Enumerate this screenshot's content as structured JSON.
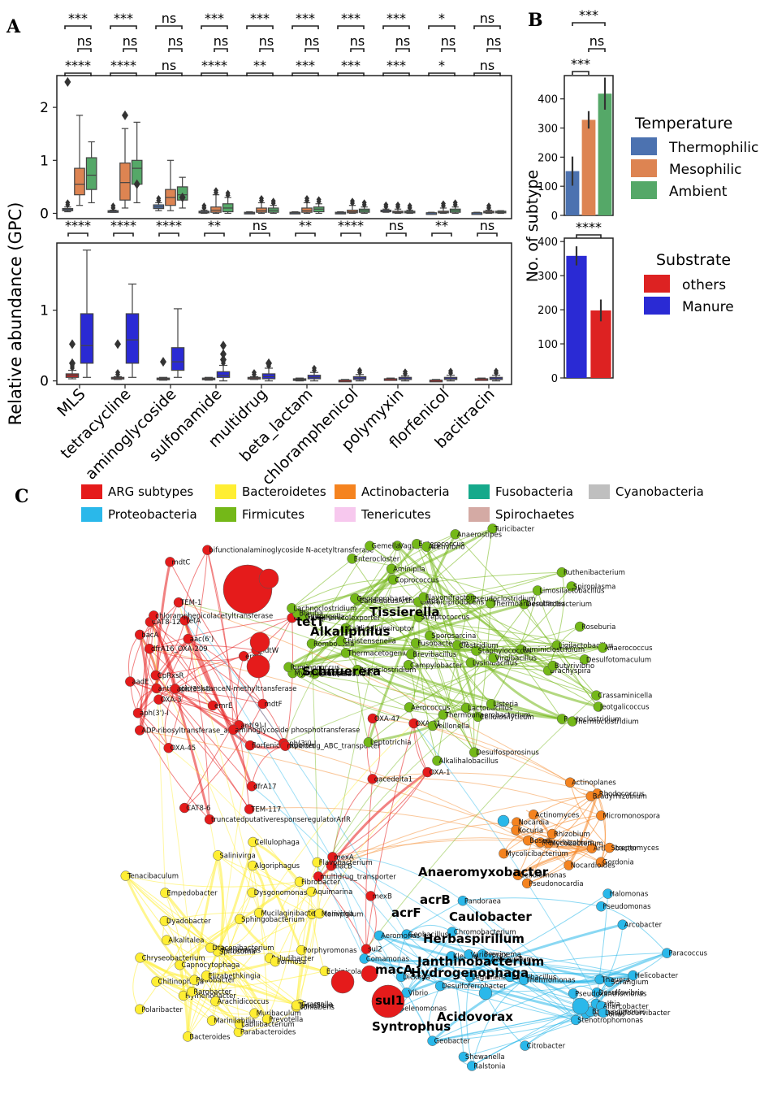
{
  "panel_labels": {
    "a": "A",
    "b": "B",
    "c": "C"
  },
  "chart_data": [
    {
      "type": "box",
      "panel": "A-top",
      "ylabel": "Relative abundance (GPC)",
      "ylim": [
        -0.1,
        2.6
      ],
      "yticks": [
        "0",
        "1",
        "2"
      ],
      "categories": [
        "MLS",
        "tetracycline",
        "aminoglycoside",
        "sulfonamide",
        "multidrug",
        "beta_lactam",
        "chloramphenicol",
        "polymyxin",
        "florfenicol",
        "bacitracin"
      ],
      "series": [
        {
          "name": "Thermophilic",
          "color": "#4c72b0",
          "boxes": [
            [
              0.03,
              0.05,
              0.07,
              0.09,
              0.12
            ],
            [
              0.02,
              0.03,
              0.04,
              0.05,
              0.06
            ],
            [
              0.05,
              0.09,
              0.12,
              0.16,
              0.2
            ],
            [
              0.0,
              0.01,
              0.02,
              0.04,
              0.06
            ],
            [
              0.0,
              0.01,
              0.01,
              0.02,
              0.03
            ],
            [
              0.0,
              0.0,
              0.01,
              0.02,
              0.03
            ],
            [
              0.0,
              0.0,
              0.01,
              0.02,
              0.03
            ],
            [
              0.02,
              0.04,
              0.05,
              0.06,
              0.08
            ],
            [
              0.0,
              0.0,
              0.01,
              0.01,
              0.02
            ],
            [
              0.0,
              0.0,
              0.01,
              0.01,
              0.02
            ]
          ]
        },
        {
          "name": "Mesophilic",
          "color": "#dd8452",
          "boxes": [
            [
              0.15,
              0.35,
              0.55,
              0.85,
              1.85
            ],
            [
              0.1,
              0.25,
              0.58,
              0.95,
              1.6
            ],
            [
              0.05,
              0.15,
              0.3,
              0.45,
              1.0
            ],
            [
              0.0,
              0.02,
              0.06,
              0.12,
              0.35
            ],
            [
              0.0,
              0.02,
              0.05,
              0.1,
              0.2
            ],
            [
              0.0,
              0.02,
              0.05,
              0.1,
              0.2
            ],
            [
              0.0,
              0.01,
              0.03,
              0.06,
              0.15
            ],
            [
              0.0,
              0.01,
              0.02,
              0.04,
              0.08
            ],
            [
              0.0,
              0.01,
              0.02,
              0.04,
              0.1
            ],
            [
              0.0,
              0.01,
              0.02,
              0.04,
              0.06
            ]
          ]
        },
        {
          "name": "Ambient",
          "color": "#55a868",
          "boxes": [
            [
              0.2,
              0.45,
              0.72,
              1.05,
              1.35
            ],
            [
              0.2,
              0.55,
              0.85,
              1.0,
              1.72
            ],
            [
              0.1,
              0.25,
              0.35,
              0.5,
              0.68
            ],
            [
              0.0,
              0.03,
              0.1,
              0.18,
              0.3
            ],
            [
              0.0,
              0.02,
              0.06,
              0.1,
              0.15
            ],
            [
              0.0,
              0.03,
              0.08,
              0.12,
              0.18
            ],
            [
              0.0,
              0.02,
              0.05,
              0.08,
              0.12
            ],
            [
              0.0,
              0.01,
              0.02,
              0.04,
              0.06
            ],
            [
              0.0,
              0.02,
              0.05,
              0.08,
              0.12
            ],
            [
              0.0,
              0.01,
              0.02,
              0.04,
              0.05
            ]
          ]
        }
      ],
      "outliers": [
        [
          0.04,
          2.48
        ],
        [
          1.13,
          1.85
        ],
        [
          1.83,
          0.55
        ],
        [
          2.83,
          0.3
        ]
      ],
      "significance": [
        [
          "****",
          "ns",
          "***"
        ],
        [
          "****",
          "ns",
          "***"
        ],
        [
          "ns",
          "ns",
          "ns"
        ],
        [
          "****",
          "ns",
          "***"
        ],
        [
          "**",
          "ns",
          "***"
        ],
        [
          "***",
          "ns",
          "***"
        ],
        [
          "***",
          "ns",
          "***"
        ],
        [
          "***",
          "ns",
          "***"
        ],
        [
          "*",
          "ns",
          "*"
        ],
        [
          "ns",
          "ns",
          "ns"
        ]
      ]
    },
    {
      "type": "box",
      "panel": "A-bottom",
      "ylim": [
        -0.05,
        1.95
      ],
      "yticks": [
        "0",
        "1"
      ],
      "categories": [
        "MLS",
        "tetracycline",
        "aminoglycoside",
        "sulfonamide",
        "multidrug",
        "beta_lactam",
        "chloramphenicol",
        "polymyxin",
        "florfenicol",
        "bacitracin"
      ],
      "series": [
        {
          "name": "others",
          "color": "#cc2222",
          "boxes": [
            [
              0.03,
              0.05,
              0.08,
              0.1,
              0.15
            ],
            [
              0.02,
              0.03,
              0.04,
              0.05,
              0.06
            ],
            [
              0.01,
              0.02,
              0.03,
              0.04,
              0.05
            ],
            [
              0.01,
              0.02,
              0.03,
              0.04,
              0.05
            ],
            [
              0.02,
              0.03,
              0.04,
              0.05,
              0.06
            ],
            [
              0.0,
              0.01,
              0.02,
              0.03,
              0.04
            ],
            [
              0.0,
              0.0,
              0.01,
              0.01,
              0.02
            ],
            [
              0.01,
              0.02,
              0.03,
              0.03,
              0.04
            ],
            [
              0.0,
              0.0,
              0.01,
              0.01,
              0.02
            ],
            [
              0.01,
              0.02,
              0.03,
              0.03,
              0.04
            ]
          ]
        },
        {
          "name": "Manure",
          "color": "#2a2ad4",
          "boxes": [
            [
              0.05,
              0.25,
              0.5,
              0.95,
              1.85
            ],
            [
              0.05,
              0.25,
              0.58,
              0.95,
              1.37
            ],
            [
              0.05,
              0.15,
              0.27,
              0.47,
              1.02
            ],
            [
              0.0,
              0.05,
              0.08,
              0.13,
              0.22
            ],
            [
              0.0,
              0.03,
              0.06,
              0.1,
              0.18
            ],
            [
              0.0,
              0.03,
              0.05,
              0.08,
              0.12
            ],
            [
              0.0,
              0.02,
              0.04,
              0.06,
              0.09
            ],
            [
              0.0,
              0.02,
              0.03,
              0.05,
              0.07
            ],
            [
              0.0,
              0.02,
              0.03,
              0.05,
              0.08
            ],
            [
              0.0,
              0.02,
              0.03,
              0.05,
              0.08
            ]
          ]
        }
      ],
      "significance": [
        "****",
        "****",
        "****",
        "**",
        "ns",
        "**",
        "****",
        "ns",
        "**",
        "ns"
      ]
    },
    {
      "type": "bar",
      "panel": "B-top",
      "ylabel": "No. of subtype",
      "ylim": [
        0,
        480
      ],
      "yticks": [
        "0",
        "100",
        "200",
        "300",
        "400"
      ],
      "categories": [
        "Thermophilic",
        "Mesophilic",
        "Ambient"
      ],
      "values": [
        152,
        328,
        418
      ],
      "errors": [
        50,
        30,
        55
      ],
      "colors": [
        "#4c72b0",
        "#dd8452",
        "#55a868"
      ],
      "significance": [
        "***",
        "ns",
        "***"
      ]
    },
    {
      "type": "bar",
      "panel": "B-bottom",
      "ylim": [
        0,
        410
      ],
      "yticks": [
        "0",
        "100",
        "200",
        "300",
        "400"
      ],
      "categories": [
        "Manure",
        "others"
      ],
      "values": [
        358,
        198
      ],
      "errors": [
        28,
        32
      ],
      "colors": [
        "#2a2ad4",
        "#dd2222"
      ],
      "significance": "****"
    }
  ],
  "legend_temperature": {
    "title": "Temperature",
    "items": [
      {
        "label": "Thermophilic",
        "color": "#4c72b0"
      },
      {
        "label": "Mesophilic",
        "color": "#dd8452"
      },
      {
        "label": "Ambient",
        "color": "#55a868"
      }
    ]
  },
  "legend_substrate": {
    "title": "Substrate",
    "items": [
      {
        "label": "others",
        "color": "#dd2222"
      },
      {
        "label": "Manure",
        "color": "#2a2ad4"
      }
    ]
  },
  "network_legend": [
    {
      "label": "ARG subtypes",
      "color": "#e51b1b"
    },
    {
      "label": "Bacteroidetes",
      "color": "#ffee33"
    },
    {
      "label": "Actinobacteria",
      "color": "#f5831f"
    },
    {
      "label": "Fusobacteria",
      "color": "#16a98b"
    },
    {
      "label": "Cyanobacteria",
      "color": "#bfbfbf"
    },
    {
      "label": "Proteobacteria",
      "color": "#2ab8ea"
    },
    {
      "label": "Firmicutes",
      "color": "#74b818"
    },
    {
      "label": "Tenericutes",
      "color": "#f7c8ee"
    },
    {
      "label": "Spirochaetes",
      "color": "#d4aaa4"
    }
  ],
  "network": {
    "large_labels": [
      "tetT",
      "Tissierella",
      "Alkaliphilus",
      "Schnuerera",
      "Anaeromyxobacter",
      "acrB",
      "acrF",
      "Caulobacter",
      "Herbaspirillum",
      "Janthinobacterium",
      "Hydrogenophaga",
      "macA",
      "sul1",
      "Syntrophus",
      "Acidovorax"
    ],
    "arg_labels": [
      "aadE",
      "ant(9)-I",
      "aph(3')-I",
      "aph(3'')-I",
      "CAT8-12",
      "CAT8-6",
      "aac(6')",
      "CpRxsR",
      "tetA",
      "bacA",
      "emrE",
      "chloramphenicolexporter",
      "florfenicolexporter",
      "ermF",
      "ADP-ribosyltransferase_arr",
      "TEM-1",
      "TEM-117",
      "OXA-3",
      "dfrA16_OXA-209",
      "dfrA17",
      "OXA-45",
      "multidrug_ABC_transporter",
      "truncatedputativeresponseregulatorArlR",
      "antibioticresistanceN-methyltransferase",
      "chloramphenicolacetyltransferase",
      "bifunctionalaminoglycoside N-acetyltransferase",
      "aminoglycoside phosphotransferase",
      "aph(3'')-II",
      "mdtF",
      "mdtC",
      "mdtW",
      "macB",
      "multidrug_transporter",
      "mexA",
      "mexB",
      "qacedelta1",
      "sul2",
      "OXA-21",
      "OXA-1",
      "OXA-47"
    ],
    "firmicutes_labels": [
      "Sporosarcina",
      "Aerococcus",
      "Cellulosilyticum",
      "Vagococcus",
      "Alkalihalobacillus",
      "Ligilactobacillus",
      "CandidatusArthromitus",
      "Jeotgalicoccus",
      "Mycoplasma",
      "Geosporobacter",
      "Peptoclostridium",
      "Desulfitobacterium",
      "Ruminiclostridium",
      "Enterococcus",
      "Gemella",
      "Desulfosporosinus",
      "Lysinibacillus",
      "Staphylococcus",
      "Gudongella",
      "Thermoanaerobacter",
      "Fusobacterium",
      "Veillonella",
      "Brachyspira",
      "Lactobacillus",
      "Pseudoclostridium",
      "Clostridium",
      "Streptococcus",
      "Campylobacter",
      "Thermacetogenium",
      "Anaerococcus",
      "Keratinibaculum",
      "Leptotrichia",
      "Acetivibrio",
      "Thermoanaerobacterium",
      "Crassaminicella",
      "Virgibacillus",
      "Listeria",
      "Desulfotomaculum",
      "Paeniclostridium",
      "Blautia",
      "Caldicellulosiruptor",
      "Thermoclostridium",
      "Aminipila",
      "Spiroplasma",
      "Mycoplasmopsis",
      "Limosilactobacillus",
      "Romboutsia",
      "Turicibacter",
      "Lachnoclostridium",
      "Enterocloster",
      "Brevibacillus",
      "Roseburia",
      "Coprococcus",
      "Anaerostipes",
      "Christensenella",
      "Ruthenibacterium",
      "Butyrivibrio",
      "Ruminococcus",
      "Caproiciproducens",
      "Flavonifractor"
    ],
    "bacteroidetes_labels": [
      "Muribaculum",
      "Petrimonas",
      "Proteiniphilum",
      "Porphyromonas",
      "Prevotella",
      "Parabacteroides",
      "Bacteroides",
      "Empedobacter",
      "Dysgonomonas",
      "Hymenobacter",
      "Fibrobacter",
      "Paludibacter",
      "Alkalitalea",
      "Chitinophaga",
      "Spirosoma",
      "Echinicola",
      "Chryseobacterium",
      "Mucilaginibacter",
      "Capnocytophaga",
      "Draconibacterium",
      "Gramella",
      "Sphingobacterium",
      "Dyadobacter",
      "Pedobacter",
      "Salinivirga",
      "Labilibacterium",
      "Flavobacterium",
      "Polaribacter",
      "Algoriphagus",
      "Formosa",
      "Nonlabens",
      "Tenacibaculum",
      "Arachidicoccus",
      "Elizabethkingia",
      "Aquimarina",
      "Cellulophaga",
      "Marinilabilia",
      "Tenuifilum",
      "Marivirga",
      "Rarobacter"
    ],
    "proteobacteria_labels": [
      "Citrobacter",
      "Klebsiella",
      "Geobacillus",
      "Legionella",
      "Helicobacter",
      "Paenibacillus",
      "Brevinema",
      "Delftia",
      "Selenomonas",
      "Paracoccus",
      "Thermomonas",
      "Halomonas",
      "Pseudomonas",
      "Aeromonas",
      "Sorangium",
      "Azospirillum",
      "Chromobacterium",
      "Ralstonia",
      "Variovorax",
      "Pandoraea",
      "Thauera",
      "Geomonas",
      "Desulfovibrio",
      "Dickeya",
      "Comamonas",
      "Aliarcobacter",
      "Pseudoxanthomonas",
      "Stenotrophomonas",
      "Brevundimonas",
      "Desulfocurvibacter",
      "Shewanella",
      "Vibrio",
      "Arcobacter",
      "Geobacter",
      "Desulfoferrobacter"
    ],
    "actinobacteria_labels": [
      "Nocardia",
      "Gordonia",
      "Rhodococcus",
      "Kocuria",
      "Actinomyces",
      "Arthrobacter",
      "Cellulomonas",
      "Actinoplanes",
      "Mycolicibacterium",
      "Mycobacterium",
      "Micromonospora",
      "Nocardioides",
      "Streptomyces",
      "Pseudonocardia",
      "Bradyrhizobium",
      "Rhizobium",
      "Mesorhizobium",
      "Bosea"
    ]
  }
}
